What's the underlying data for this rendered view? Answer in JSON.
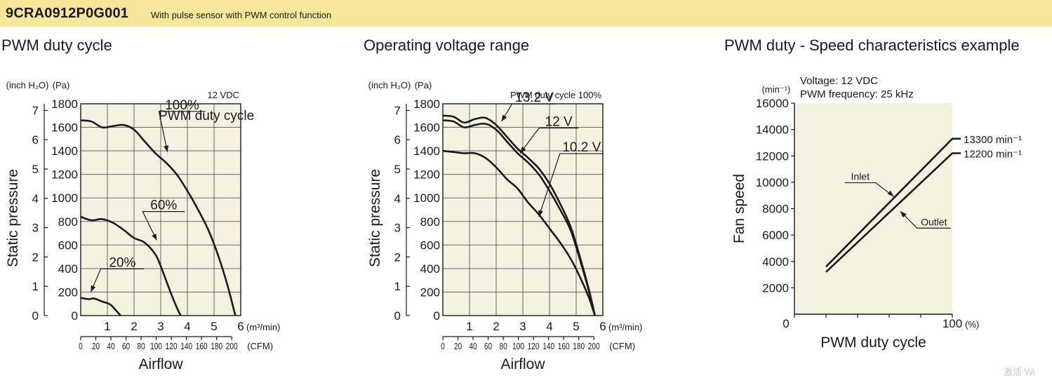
{
  "header": {
    "model": "9CRA0912P0G001",
    "subtitle": "With pulse sensor with PWM control function",
    "color": "#f7e79a"
  },
  "colors": {
    "plot_bg": "#f6f2e2",
    "curve": "#1a1a1a"
  },
  "watermark": "激活 Wi",
  "chart_data": [
    {
      "type": "line",
      "title": "PWM duty cycle",
      "condition": "12 VDC",
      "legend_title": "PWM duty cycle",
      "xlabel": "Airflow",
      "ylabel": "Static pressure",
      "x_unit": "(m³/min)",
      "x2_unit": "(CFM)",
      "y_unit": "(Pa)",
      "y2_unit": "(inch H₂O)",
      "xlim": [
        0,
        6
      ],
      "ylim": [
        0,
        1800
      ],
      "x_ticks": [
        "0",
        "1",
        "2",
        "3",
        "4",
        "5",
        "6"
      ],
      "y_ticks": [
        "0",
        "200",
        "400",
        "600",
        "800",
        "1000",
        "1200",
        "1400",
        "1600",
        "1800"
      ],
      "y2_ticks": [
        "0",
        "1",
        "2",
        "3",
        "4",
        "5",
        "6",
        "7"
      ],
      "x2_ticks": [
        "0",
        "20",
        "40",
        "60",
        "80",
        "100",
        "120",
        "140",
        "160",
        "180",
        "200"
      ],
      "grid": true,
      "series": [
        {
          "name": "100%",
          "x": [
            0,
            0.4,
            0.8,
            1.2,
            1.6,
            2.0,
            2.4,
            2.8,
            3.2,
            3.6,
            4.0,
            4.4,
            4.8,
            5.2,
            5.5,
            5.8
          ],
          "y": [
            1660,
            1650,
            1600,
            1610,
            1620,
            1580,
            1480,
            1380,
            1300,
            1200,
            1060,
            900,
            720,
            480,
            260,
            0
          ]
        },
        {
          "name": "60%",
          "x": [
            0,
            0.4,
            0.8,
            1.2,
            1.6,
            2.0,
            2.4,
            2.8,
            3.0,
            3.2,
            3.4,
            3.6,
            3.75
          ],
          "y": [
            840,
            810,
            820,
            790,
            730,
            660,
            620,
            520,
            420,
            300,
            180,
            70,
            0
          ]
        },
        {
          "name": "20%",
          "x": [
            0,
            0.3,
            0.5,
            0.8,
            1.1,
            1.3,
            1.5
          ],
          "y": [
            150,
            140,
            145,
            120,
            95,
            50,
            0
          ]
        }
      ]
    },
    {
      "type": "line",
      "title": "Operating voltage range",
      "condition": "PWM duty cycle 100%",
      "xlabel": "Airflow",
      "ylabel": "Static pressure",
      "x_unit": "(m³/min)",
      "x2_unit": "(CFM)",
      "y_unit": "(Pa)",
      "y2_unit": "(inch H₂O)",
      "xlim": [
        0,
        6
      ],
      "ylim": [
        0,
        1800
      ],
      "x_ticks": [
        "0",
        "1",
        "2",
        "3",
        "4",
        "5",
        "6"
      ],
      "y_ticks": [
        "0",
        "200",
        "400",
        "600",
        "800",
        "1000",
        "1200",
        "1400",
        "1600",
        "1800"
      ],
      "y2_ticks": [
        "0",
        "1",
        "2",
        "3",
        "4",
        "5",
        "6",
        "7"
      ],
      "x2_ticks": [
        "0",
        "20",
        "40",
        "60",
        "80",
        "100",
        "120",
        "140",
        "160",
        "180",
        "200"
      ],
      "grid": true,
      "series": [
        {
          "name": "13.2 V",
          "x": [
            0,
            0.4,
            0.8,
            1.2,
            1.6,
            2.0,
            2.4,
            2.8,
            3.2,
            3.6,
            4.0,
            4.4,
            4.8,
            5.2,
            5.5,
            5.7
          ],
          "y": [
            1700,
            1690,
            1640,
            1670,
            1680,
            1620,
            1520,
            1420,
            1340,
            1250,
            1120,
            950,
            750,
            450,
            200,
            0
          ]
        },
        {
          "name": "12 V",
          "x": [
            0,
            0.4,
            0.8,
            1.2,
            1.6,
            2.0,
            2.4,
            2.8,
            3.2,
            3.6,
            4.0,
            4.4,
            4.8,
            5.2,
            5.5,
            5.7
          ],
          "y": [
            1660,
            1650,
            1600,
            1620,
            1630,
            1580,
            1480,
            1380,
            1300,
            1200,
            1060,
            900,
            720,
            430,
            190,
            0
          ]
        },
        {
          "name": "10.2 V",
          "x": [
            0,
            0.4,
            0.8,
            1.2,
            1.6,
            2.0,
            2.4,
            2.8,
            3.2,
            3.6,
            4.0,
            4.4,
            4.8,
            5.2,
            5.5,
            5.7
          ],
          "y": [
            1400,
            1390,
            1380,
            1380,
            1340,
            1260,
            1160,
            1080,
            960,
            860,
            740,
            620,
            480,
            300,
            140,
            0
          ]
        }
      ]
    },
    {
      "type": "line",
      "title": "PWM duty - Speed characteristics example",
      "conditions": [
        "Voltage: 12 VDC",
        "PWM frequency: 25 kHz"
      ],
      "xlabel": "PWM duty cycle",
      "ylabel": "Fan speed",
      "x_unit": "(%)",
      "y_unit": "(min⁻¹)",
      "xlim": [
        0,
        100
      ],
      "ylim": [
        0,
        16000
      ],
      "x_ticks": [
        "0",
        "100"
      ],
      "y_ticks": [
        "2000",
        "4000",
        "6000",
        "8000",
        "10000",
        "12000",
        "14000",
        "16000"
      ],
      "grid": false,
      "series": [
        {
          "name": "Inlet",
          "x": [
            20,
            100
          ],
          "y": [
            3600,
            13300
          ]
        },
        {
          "name": "Outlet",
          "x": [
            20,
            100
          ],
          "y": [
            3200,
            12200
          ]
        }
      ],
      "end_labels": [
        "13300 min⁻¹",
        "12200 min⁻¹"
      ]
    }
  ]
}
